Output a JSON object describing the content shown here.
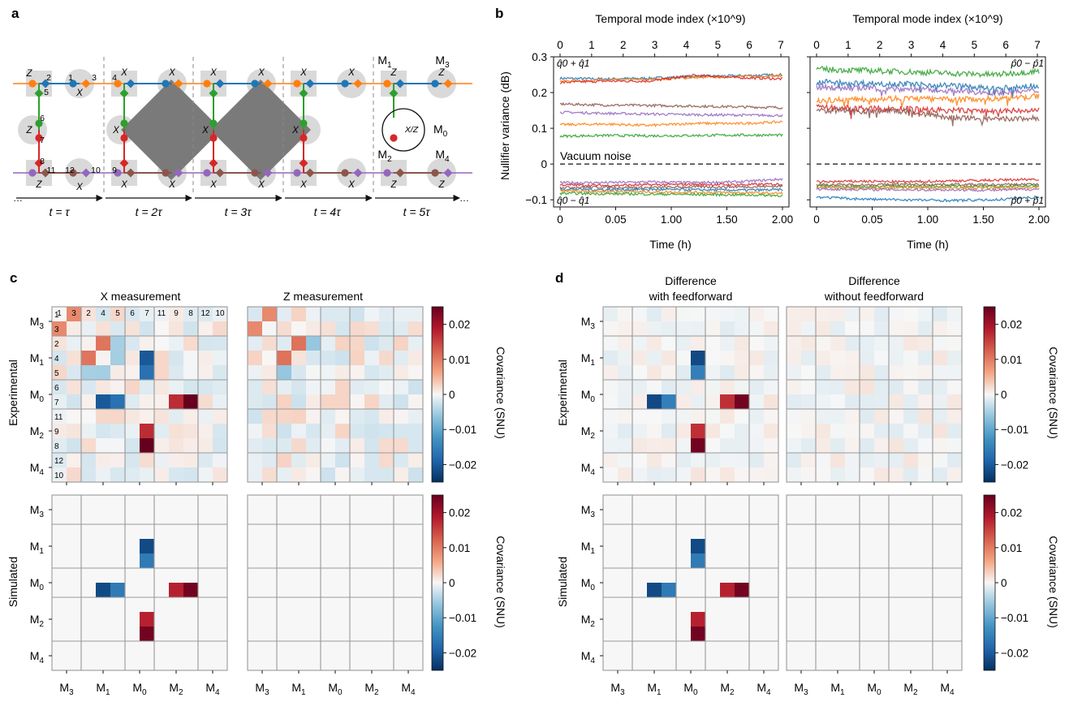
{
  "figure": {
    "panel_labels": [
      "a",
      "b",
      "c",
      "d"
    ]
  },
  "panel_a": {
    "time_labels": [
      "t = τ",
      "t = 2τ",
      "t = 3τ",
      "t = 4τ",
      "t = 5τ"
    ],
    "readout_labels": [
      "M1",
      "M3",
      "M0",
      "M2",
      "M4"
    ],
    "node_numbers": [
      "1",
      "2",
      "3",
      "4",
      "5",
      "6",
      "7",
      "8",
      "9",
      "10",
      "11",
      "12"
    ],
    "measurement_labels": [
      "X",
      "Z",
      "X/Z"
    ],
    "colors": {
      "orange": "#ff7f0e",
      "blue": "#1f77b4",
      "green": "#2ca02c",
      "red": "#d62728",
      "purple": "#9467bd",
      "brown": "#8c564b",
      "shadow": "#d9d9d9",
      "block": "#7a7a7a"
    }
  },
  "chart_data": [
    {
      "id": "b-left",
      "type": "line",
      "xlabel": "Time (h)",
      "x2label": "Temporal mode index (×10^9)",
      "ylabel": "Nullifier variance (dB)",
      "x_ticks": [
        "0",
        "0.05",
        "1.00",
        "1.50",
        "2.00"
      ],
      "x2_ticks": [
        "0",
        "1",
        "2",
        "3",
        "4",
        "5",
        "6",
        "7"
      ],
      "y_ticks": [
        "0.3",
        "0.2",
        "0.1",
        "0",
        "−0.1"
      ],
      "ylim": [
        -0.12,
        0.3
      ],
      "xlim": [
        0,
        2.0
      ],
      "annotations": {
        "top": "q̂0 + q̂1",
        "bottom": "q̂0 − q̂1",
        "vacuum": "Vacuum noise"
      },
      "vacuum_level": 0,
      "series": [
        {
          "color": "#1f77b4",
          "values": [
            0.24,
            0.238,
            0.24,
            0.245,
            0.247,
            0.25
          ]
        },
        {
          "color": "#ff7f0e",
          "values": [
            0.232,
            0.235,
            0.236,
            0.242,
            0.245,
            0.247
          ]
        },
        {
          "color": "#d62728",
          "values": [
            0.228,
            0.232,
            0.232,
            0.248,
            0.242,
            0.238
          ]
        },
        {
          "color": "#8c564b",
          "values": [
            0.168,
            0.165,
            0.164,
            0.162,
            0.16,
            0.158
          ]
        },
        {
          "color": "#9467bd",
          "values": [
            0.145,
            0.142,
            0.14,
            0.138,
            0.137,
            0.136
          ]
        },
        {
          "color": "#ff7f0e",
          "values": [
            0.11,
            0.112,
            0.108,
            0.114,
            0.113,
            0.118
          ]
        },
        {
          "color": "#2ca02c",
          "values": [
            0.078,
            0.08,
            0.079,
            0.08,
            0.081,
            0.081
          ]
        },
        {
          "color": "#9467bd",
          "values": [
            -0.052,
            -0.052,
            -0.05,
            -0.052,
            -0.05,
            -0.042
          ]
        },
        {
          "color": "#d62728",
          "values": [
            -0.058,
            -0.06,
            -0.058,
            -0.057,
            -0.058,
            -0.056
          ]
        },
        {
          "color": "#8c564b",
          "values": [
            -0.065,
            -0.065,
            -0.066,
            -0.064,
            -0.064,
            -0.062
          ]
        },
        {
          "color": "#1f77b4",
          "values": [
            -0.07,
            -0.072,
            -0.071,
            -0.072,
            -0.073,
            -0.072
          ]
        },
        {
          "color": "#ff7f0e",
          "values": [
            -0.075,
            -0.077,
            -0.078,
            -0.079,
            -0.08,
            -0.082
          ]
        },
        {
          "color": "#2ca02c",
          "values": [
            -0.082,
            -0.083,
            -0.084,
            -0.085,
            -0.086,
            -0.088
          ]
        }
      ]
    },
    {
      "id": "b-right",
      "type": "line",
      "xlabel": "Time (h)",
      "x2label": "Temporal mode index (×10^9)",
      "x_ticks": [
        "0",
        "0.05",
        "1.00",
        "1.50",
        "2.00"
      ],
      "x2_ticks": [
        "0",
        "1",
        "2",
        "3",
        "4",
        "5",
        "6",
        "7"
      ],
      "ylim": [
        -0.12,
        0.3
      ],
      "xlim": [
        0,
        2.0
      ],
      "annotations": {
        "top": "p̂0 − p̂1",
        "bottom": "p̂0 + p̂1"
      },
      "vacuum_level": 0,
      "series": [
        {
          "color": "#2ca02c",
          "values": [
            0.265,
            0.262,
            0.258,
            0.254,
            0.25,
            0.26
          ]
        },
        {
          "color": "#1f77b4",
          "values": [
            0.23,
            0.226,
            0.224,
            0.22,
            0.21,
            0.22
          ]
        },
        {
          "color": "#9467bd",
          "values": [
            0.215,
            0.212,
            0.21,
            0.205,
            0.2,
            0.205
          ]
        },
        {
          "color": "#ff7f0e",
          "values": [
            0.178,
            0.182,
            0.184,
            0.18,
            0.183,
            0.19
          ]
        },
        {
          "color": "#d62728",
          "values": [
            0.158,
            0.155,
            0.154,
            0.15,
            0.148,
            0.15
          ]
        },
        {
          "color": "#8c564b",
          "values": [
            0.15,
            0.148,
            0.148,
            0.13,
            0.125,
            0.128
          ]
        },
        {
          "color": "#d62728",
          "values": [
            -0.05,
            -0.048,
            -0.05,
            -0.047,
            -0.045,
            -0.042
          ]
        },
        {
          "color": "#8c564b",
          "values": [
            -0.058,
            -0.058,
            -0.057,
            -0.057,
            -0.058,
            -0.056
          ]
        },
        {
          "color": "#2ca02c",
          "values": [
            -0.062,
            -0.063,
            -0.062,
            -0.062,
            -0.063,
            -0.06
          ]
        },
        {
          "color": "#ff7f0e",
          "values": [
            -0.066,
            -0.067,
            -0.066,
            -0.067,
            -0.067,
            -0.065
          ]
        },
        {
          "color": "#9467bd",
          "values": [
            -0.07,
            -0.071,
            -0.072,
            -0.072,
            -0.073,
            -0.07
          ]
        },
        {
          "color": "#1f77b4",
          "values": [
            -0.092,
            -0.098,
            -0.1,
            -0.102,
            -0.1,
            -0.092
          ]
        }
      ]
    },
    {
      "id": "c",
      "type": "heatmap",
      "column_titles": [
        "X measurement",
        "Z measurement"
      ],
      "row_titles": [
        "Experimental",
        "Simulated"
      ],
      "group_labels": [
        "M3",
        "M1",
        "M0",
        "M2",
        "M4"
      ],
      "mode_labels": [
        "1",
        "3",
        "2",
        "4",
        "5",
        "6",
        "7",
        "11",
        "9",
        "8",
        "12",
        "10"
      ],
      "colorbar_label": "Covariance (SNU)",
      "colorbar_ticks": [
        "0.02",
        "0.01",
        "0",
        "−0.01",
        "−0.02"
      ],
      "vmin": -0.025,
      "vmax": 0.025
    },
    {
      "id": "d",
      "type": "heatmap",
      "column_titles": [
        "Difference with feedforward",
        "Difference without feedforward"
      ],
      "column_title_lines": [
        [
          "Difference",
          "with feedforward"
        ],
        [
          "Difference",
          "without feedforward"
        ]
      ],
      "row_titles": [
        "Experimental",
        "Simulated"
      ],
      "group_labels": [
        "M3",
        "M1",
        "M0",
        "M2",
        "M4"
      ],
      "colorbar_label": "Covariance (SNU)",
      "colorbar_ticks": [
        "0.02",
        "0.01",
        "0",
        "−0.01",
        "−0.02"
      ],
      "vmin": -0.025,
      "vmax": 0.025
    }
  ]
}
